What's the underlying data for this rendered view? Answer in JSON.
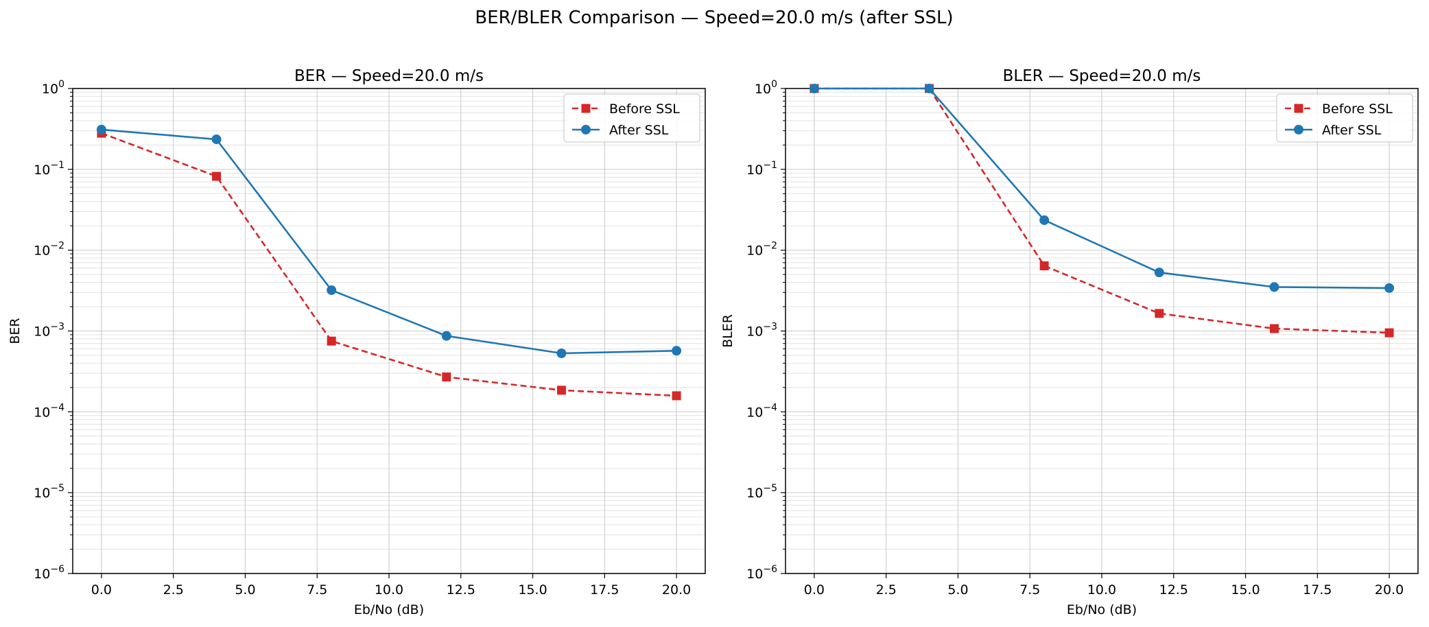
{
  "figure": {
    "suptitle": "BER/BLER Comparison — Speed=20.0 m/s (after SSL)"
  },
  "colors": {
    "before": "#d62728",
    "after": "#1f77b4",
    "grid": "#d0d0d0",
    "axis": "#000000"
  },
  "chart_data": [
    {
      "type": "line",
      "title": "BER — Speed=20.0 m/s",
      "xlabel": "Eb/No (dB)",
      "ylabel": "BER",
      "yscale": "log",
      "xlim": [
        -1.0,
        21.0
      ],
      "ylim": [
        1e-06,
        1
      ],
      "x_ticks": [
        0.0,
        2.5,
        5.0,
        7.5,
        10.0,
        12.5,
        15.0,
        17.5,
        20.0
      ],
      "x_tick_labels": [
        "0.0",
        "2.5",
        "5.0",
        "7.5",
        "10.0",
        "12.5",
        "15.0",
        "17.5",
        "20.0"
      ],
      "y_tick_exponents": [
        -6,
        -5,
        -4,
        -3,
        -2,
        -1,
        0
      ],
      "grid": true,
      "legend_position": "top-right",
      "x": [
        0,
        4,
        8,
        12,
        16,
        20
      ],
      "series": [
        {
          "name": "Before SSL",
          "style": "dashed",
          "marker": "square",
          "color": "#d62728",
          "values": [
            0.28,
            0.082,
            0.00075,
            0.00027,
            0.000185,
            0.000158
          ]
        },
        {
          "name": "After SSL",
          "style": "solid",
          "marker": "circle",
          "color": "#1f77b4",
          "values": [
            0.31,
            0.235,
            0.0032,
            0.00087,
            0.00053,
            0.00057
          ]
        }
      ]
    },
    {
      "type": "line",
      "title": "BLER — Speed=20.0 m/s",
      "xlabel": "Eb/No (dB)",
      "ylabel": "BLER",
      "yscale": "log",
      "xlim": [
        -1.0,
        21.0
      ],
      "ylim": [
        1e-06,
        1
      ],
      "x_ticks": [
        0.0,
        2.5,
        5.0,
        7.5,
        10.0,
        12.5,
        15.0,
        17.5,
        20.0
      ],
      "x_tick_labels": [
        "0.0",
        "2.5",
        "5.0",
        "7.5",
        "10.0",
        "12.5",
        "15.0",
        "17.5",
        "20.0"
      ],
      "y_tick_exponents": [
        -6,
        -5,
        -4,
        -3,
        -2,
        -1,
        0
      ],
      "grid": true,
      "legend_position": "top-right",
      "x": [
        0,
        4,
        8,
        12,
        16,
        20
      ],
      "series": [
        {
          "name": "Before SSL",
          "style": "dashed",
          "marker": "square",
          "color": "#d62728",
          "values": [
            1.0,
            1.0,
            0.0064,
            0.00165,
            0.00107,
            0.00095
          ]
        },
        {
          "name": "After SSL",
          "style": "solid",
          "marker": "circle",
          "color": "#1f77b4",
          "values": [
            1.0,
            1.0,
            0.0235,
            0.0053,
            0.0035,
            0.0034
          ]
        }
      ]
    }
  ]
}
